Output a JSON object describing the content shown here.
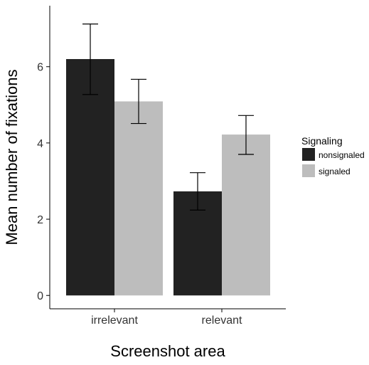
{
  "chart_data": {
    "type": "bar",
    "title": "",
    "xlabel": "Screenshot area",
    "ylabel": "Mean number of fixations",
    "categories": [
      "irrelevant",
      "relevant"
    ],
    "ylim": [
      -0.35,
      7.6
    ],
    "yticks": [
      0,
      2,
      4,
      6
    ],
    "grid": false,
    "legend": {
      "title": "Signaling",
      "position": "right"
    },
    "series": [
      {
        "name": "nonsignaled",
        "color": "#222222",
        "values": [
          6.2,
          2.73
        ],
        "error_low": [
          5.27,
          2.24
        ],
        "error_high": [
          7.12,
          3.22
        ]
      },
      {
        "name": "signaled",
        "color": "#bdbdbd",
        "values": [
          5.09,
          4.22
        ],
        "error_low": [
          4.51,
          3.7
        ],
        "error_high": [
          5.67,
          4.72
        ]
      }
    ]
  }
}
